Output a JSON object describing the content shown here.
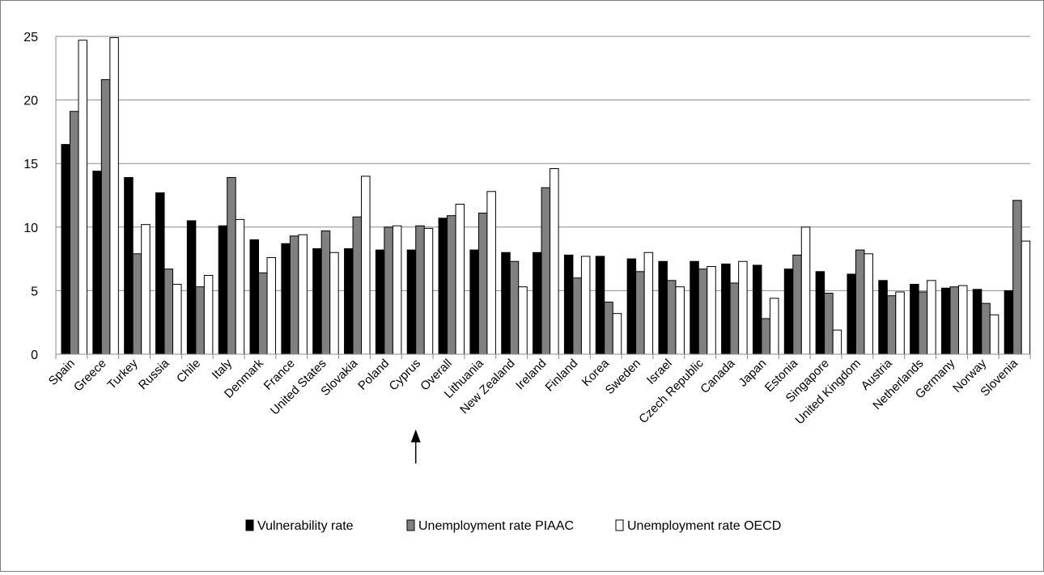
{
  "chart_data": {
    "type": "bar",
    "title": "",
    "xlabel": "",
    "ylabel": "",
    "ylim": [
      0,
      25
    ],
    "yticks": [
      0,
      5,
      10,
      15,
      20,
      25
    ],
    "grid": "horizontal",
    "legend_position": "bottom",
    "categories": [
      "Spain",
      "Greece",
      "Turkey",
      "Russia",
      "Chile",
      "Italy",
      "Denmark",
      "France",
      "United States",
      "Slovakia",
      "Poland",
      "Cyprus",
      "Overall",
      "Lithuania",
      "New Zealand",
      "Ireland",
      "Finland",
      "Korea",
      "Sweden",
      "Israel",
      "Czech Republic",
      "Canada",
      "Japan",
      "Estonia",
      "Singapore",
      "United Kingdom",
      "Austria",
      "Netherlands",
      "Germany",
      "Norway",
      "Slovenia"
    ],
    "highlighted_category": "Cyprus",
    "series": [
      {
        "name": "Vulnerability rate",
        "fill": "#000000",
        "values": [
          16.5,
          14.4,
          13.9,
          12.7,
          10.5,
          10.1,
          9.0,
          8.7,
          8.3,
          8.3,
          8.2,
          8.2,
          10.7,
          8.2,
          8.0,
          8.0,
          7.8,
          7.7,
          7.5,
          7.3,
          7.3,
          7.1,
          7.0,
          6.7,
          6.5,
          6.3,
          5.8,
          5.5,
          5.2,
          5.1,
          5.0
        ]
      },
      {
        "name": "Unemployment rate PIAAC",
        "fill": "#808080",
        "values": [
          19.1,
          21.6,
          7.9,
          6.7,
          5.3,
          13.9,
          6.4,
          9.3,
          9.7,
          10.8,
          10.0,
          10.1,
          10.9,
          11.1,
          7.3,
          13.1,
          6.0,
          4.1,
          6.5,
          5.8,
          6.7,
          5.6,
          2.8,
          7.8,
          4.8,
          8.2,
          4.6,
          4.9,
          5.3,
          4.0,
          12.1
        ]
      },
      {
        "name": "Unemployment rate OECD",
        "fill": "#ffffff",
        "values": [
          24.7,
          24.9,
          10.2,
          5.5,
          6.2,
          10.6,
          7.6,
          9.4,
          8.0,
          14.0,
          10.1,
          9.9,
          11.8,
          12.8,
          5.3,
          14.6,
          7.7,
          3.2,
          8.0,
          5.3,
          6.9,
          7.3,
          4.4,
          10.0,
          1.9,
          7.9,
          4.9,
          5.8,
          5.4,
          3.1,
          8.9
        ]
      }
    ]
  }
}
